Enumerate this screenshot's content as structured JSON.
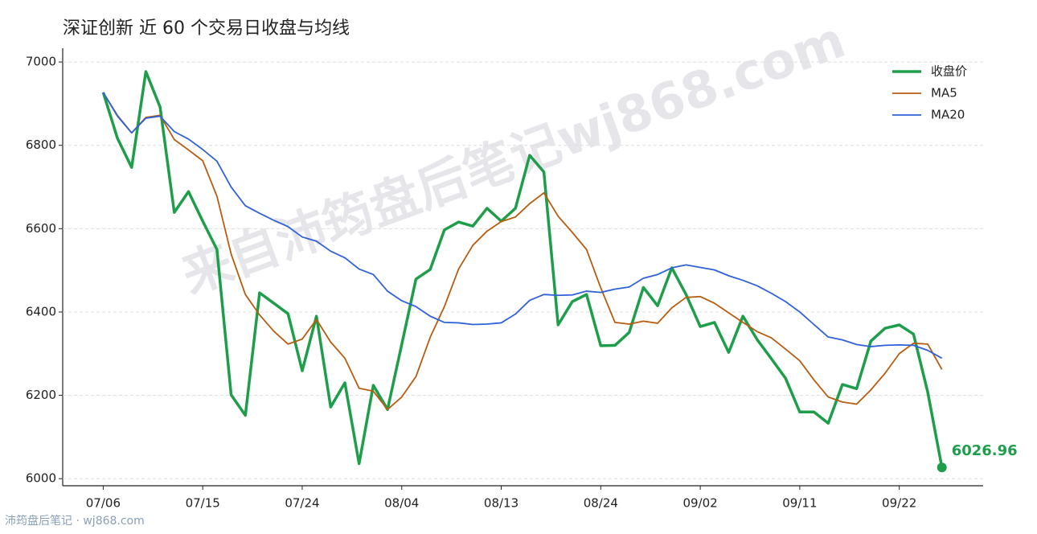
{
  "chart_data": {
    "type": "line",
    "title": "深证创新 近 60 个交易日收盘与均线",
    "categories": [
      "07/06",
      null,
      null,
      null,
      null,
      null,
      null,
      "07/15",
      null,
      null,
      null,
      null,
      null,
      null,
      "07/24",
      null,
      null,
      null,
      null,
      null,
      null,
      "08/04",
      null,
      null,
      null,
      null,
      null,
      null,
      "08/13",
      null,
      null,
      null,
      null,
      null,
      null,
      "08/24",
      null,
      null,
      null,
      null,
      null,
      null,
      "09/02",
      null,
      null,
      null,
      null,
      null,
      null,
      "09/11",
      null,
      null,
      null,
      null,
      null,
      null,
      "09/22",
      null,
      null,
      null
    ],
    "series": [
      {
        "name": "收盘价",
        "color": "#1e9e4a",
        "values": [
          6927,
          6817,
          6747,
          6977,
          6892,
          6639,
          6689,
          6618,
          6550,
          6201,
          6152,
          6446,
          6421,
          6396,
          6259,
          6390,
          6172,
          6230,
          6036,
          6224,
          6166,
          6322,
          6479,
          6502,
          6597,
          6616,
          6606,
          6649,
          6618,
          6649,
          6776,
          6736,
          6369,
          6425,
          6442,
          6319,
          6320,
          6351,
          6459,
          6415,
          6506,
          6442,
          6365,
          6375,
          6303,
          6390,
          6334,
          6288,
          6241,
          6160,
          6160,
          6133,
          6226,
          6216,
          6330,
          6361,
          6369,
          6347,
          6208,
          6026.96
        ]
      },
      {
        "name": "MA5",
        "color": "#b85c10",
        "values": [
          6927,
          6872,
          6830,
          6867,
          6872,
          6814,
          6789,
          6763,
          6678,
          6539,
          6442,
          6393,
          6354,
          6323,
          6335,
          6382,
          6328,
          6289,
          6217,
          6210,
          6166,
          6196,
          6245,
          6339,
          6413,
          6503,
          6560,
          6594,
          6617,
          6628,
          6660,
          6686,
          6630,
          6591,
          6550,
          6458,
          6375,
          6371,
          6378,
          6373,
          6410,
          6435,
          6437,
          6421,
          6398,
          6375,
          6353,
          6338,
          6311,
          6283,
          6237,
          6196,
          6184,
          6179,
          6213,
          6253,
          6300,
          6325,
          6323,
          6262
        ]
      },
      {
        "name": "MA20",
        "color": "#2f62d8",
        "values": [
          6927,
          6870,
          6830,
          6865,
          6870,
          6833,
          6815,
          6790,
          6762,
          6700,
          6655,
          6637,
          6620,
          6605,
          6580,
          6570,
          6546,
          6530,
          6503,
          6490,
          6450,
          6427,
          6413,
          6390,
          6375,
          6374,
          6370,
          6371,
          6374,
          6395,
          6428,
          6442,
          6440,
          6441,
          6450,
          6447,
          6455,
          6460,
          6481,
          6490,
          6506,
          6513,
          6507,
          6501,
          6487,
          6476,
          6463,
          6445,
          6425,
          6400,
          6370,
          6340,
          6333,
          6322,
          6317,
          6320,
          6321,
          6320,
          6308,
          6289
        ]
      }
    ],
    "ylim": [
      5983,
      7033
    ],
    "yticks": [
      6000,
      6200,
      6400,
      6600,
      6800,
      7000
    ],
    "grid": true,
    "legend": "upper right"
  },
  "watermark": "来自沛筠盘后笔记wj868.com",
  "footer": "沛筠盘后笔记 · wj868.com"
}
